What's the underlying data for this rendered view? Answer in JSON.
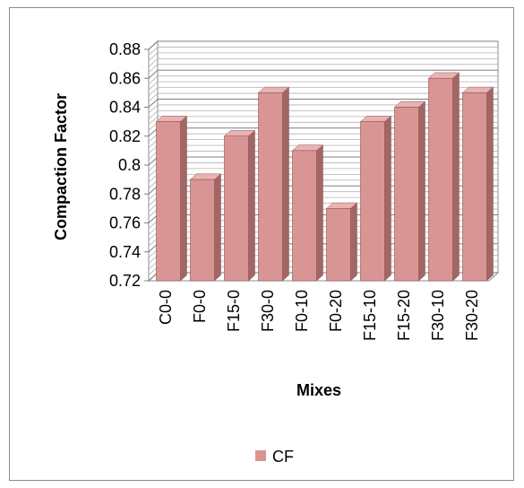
{
  "chart_data": {
    "type": "bar",
    "categories": [
      "C0-0",
      "F0-0",
      "F15-0",
      "F30-0",
      "F0-10",
      "F0-20",
      "F15-10",
      "F15-20",
      "F30-10",
      "F30-20"
    ],
    "series": [
      {
        "name": "CF",
        "values": [
          0.83,
          0.79,
          0.82,
          0.85,
          0.81,
          0.77,
          0.83,
          0.84,
          0.86,
          0.85
        ],
        "color": "#d99594"
      }
    ],
    "xlabel": "Mixes",
    "ylabel": "Compaction Factor",
    "ylim": [
      0.72,
      0.88
    ],
    "yticks": [
      "0.72",
      "0.74",
      "0.76",
      "0.78",
      "0.8",
      "0.82",
      "0.84",
      "0.86",
      "0.88"
    ],
    "grid": true,
    "legend_position": "bottom",
    "style": "3d-column"
  }
}
